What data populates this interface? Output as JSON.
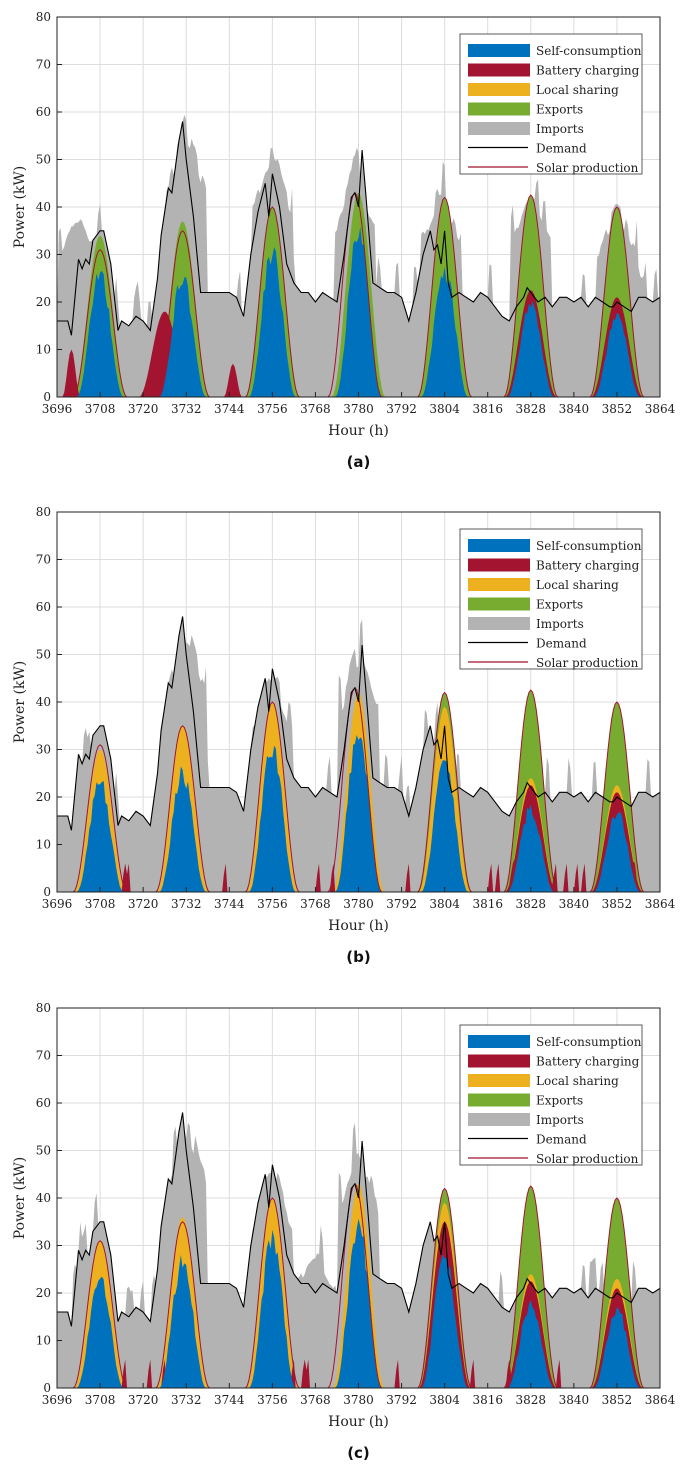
{
  "colors": {
    "self_consumption": "#0072BD",
    "battery_charging": "#A2142F",
    "local_sharing": "#EDB120",
    "exports": "#77AC30",
    "imports": "#B3B3B3",
    "demand": "#000000",
    "solar_production": "#A2142F",
    "grid": "#DDDDDD"
  },
  "chart_data": [
    {
      "type": "area",
      "panel_label": "(a)",
      "xlabel": "Hour (h)",
      "ylabel": "Power (kW)",
      "xlim": [
        3696,
        3864
      ],
      "ylim": [
        0,
        80
      ],
      "xticks": [
        3696,
        3708,
        3720,
        3732,
        3744,
        3756,
        3768,
        3780,
        3792,
        3804,
        3816,
        3828,
        3840,
        3852,
        3864
      ],
      "yticks": [
        0,
        10,
        20,
        30,
        40,
        50,
        60,
        70,
        80
      ],
      "grid": true,
      "legend": "top-right",
      "legend_entries": [
        "Self-consumption",
        "Battery charging",
        "Local sharing",
        "Exports",
        "Imports",
        "Demand",
        "Solar production"
      ],
      "series": [
        {
          "name": "Solar production",
          "peaks": [
            {
              "x": 3708,
              "y": 31
            },
            {
              "x": 3731,
              "y": 35
            },
            {
              "x": 3756,
              "y": 40
            },
            {
              "x": 3779,
              "y": 43
            },
            {
              "x": 3804,
              "y": 42
            },
            {
              "x": 3828,
              "y": 42.5
            },
            {
              "x": 3852,
              "y": 40
            }
          ]
        },
        {
          "name": "Demand",
          "x": [
            3696,
            3699,
            3700,
            3702,
            3703,
            3704,
            3705,
            3706,
            3708,
            3709,
            3711,
            3713,
            3714,
            3716,
            3718,
            3720,
            3722,
            3724,
            3725,
            3727,
            3728,
            3730,
            3731,
            3732,
            3733,
            3734,
            3736,
            3738,
            3741,
            3744,
            3746,
            3748,
            3750,
            3752,
            3754,
            3755,
            3756,
            3758,
            3760,
            3762,
            3764,
            3766,
            3768,
            3770,
            3772,
            3774,
            3776,
            3778,
            3779,
            3780,
            3781,
            3782,
            3784,
            3786,
            3788,
            3790,
            3792,
            3794,
            3796,
            3798,
            3800,
            3801,
            3802,
            3803,
            3804,
            3805,
            3806,
            3808,
            3810,
            3812,
            3814,
            3816,
            3818,
            3820,
            3822,
            3824,
            3826,
            3827,
            3828,
            3830,
            3832,
            3834,
            3836,
            3838,
            3840,
            3842,
            3844,
            3846,
            3848,
            3850,
            3851,
            3852,
            3854,
            3856,
            3858,
            3860,
            3862,
            3864
          ],
          "values": [
            16,
            16,
            13,
            29,
            27,
            29,
            28,
            33,
            35,
            35,
            28,
            14,
            16,
            15,
            17,
            16,
            14,
            25,
            34,
            44,
            43,
            54,
            58,
            50,
            44,
            38,
            22,
            22,
            22,
            22,
            21,
            17,
            30,
            39,
            45,
            38,
            47,
            40,
            28,
            24,
            22,
            22,
            20,
            22,
            21,
            20,
            30,
            42,
            43,
            40,
            52,
            43,
            24,
            23,
            22,
            22,
            21,
            16,
            22,
            30,
            35,
            31,
            32,
            28,
            35,
            24,
            21,
            22,
            21,
            20,
            22,
            21,
            19,
            17,
            16,
            19,
            21,
            23,
            22,
            20,
            21,
            19,
            21,
            21,
            20,
            21,
            19,
            21,
            20,
            19,
            19,
            20,
            19,
            18,
            21,
            21,
            20,
            21
          ]
        },
        {
          "name": "Self-consumption",
          "peaks": [
            {
              "x": 3708,
              "y": 28
            },
            {
              "x": 3731,
              "y": 27
            },
            {
              "x": 3756,
              "y": 33
            },
            {
              "x": 3780,
              "y": 37
            },
            {
              "x": 3804,
              "y": 29
            },
            {
              "x": 3828,
              "y": 21
            },
            {
              "x": 3852,
              "y": 18
            }
          ]
        },
        {
          "name": "Battery charging",
          "peaks": [
            {
              "x": 3700,
              "y": 10
            },
            {
              "x": 3726,
              "y": 18
            },
            {
              "x": 3745,
              "y": 7
            },
            {
              "x": 3828,
              "y": 22.5
            },
            {
              "x": 3852,
              "y": 21
            }
          ]
        },
        {
          "name": "Exports",
          "peaks": [
            {
              "x": 3708,
              "y": 34
            },
            {
              "x": 3731,
              "y": 37
            },
            {
              "x": 3756,
              "y": 40
            },
            {
              "x": 3780,
              "y": 43
            },
            {
              "x": 3804,
              "y": 42
            },
            {
              "x": 3828,
              "y": 42.5
            },
            {
              "x": 3852,
              "y": 40
            }
          ]
        },
        {
          "name": "Imports",
          "peaks": [
            {
              "x": 3702,
              "y": 39
            },
            {
              "x": 3732,
              "y": 58
            },
            {
              "x": 3756,
              "y": 54
            },
            {
              "x": 3779,
              "y": 49
            },
            {
              "x": 3803,
              "y": 45
            },
            {
              "x": 3828,
              "y": 43.5
            },
            {
              "x": 3852,
              "y": 41
            }
          ]
        }
      ]
    },
    {
      "type": "area",
      "panel_label": "(b)",
      "xlabel": "Hour (h)",
      "ylabel": "Power (kW)",
      "xlim": [
        3696,
        3864
      ],
      "ylim": [
        0,
        80
      ],
      "xticks": [
        3696,
        3708,
        3720,
        3732,
        3744,
        3756,
        3768,
        3780,
        3792,
        3804,
        3816,
        3828,
        3840,
        3852,
        3864
      ],
      "yticks": [
        0,
        10,
        20,
        30,
        40,
        50,
        60,
        70,
        80
      ],
      "grid": true,
      "legend": "top-right",
      "legend_entries": [
        "Self-consumption",
        "Battery charging",
        "Local sharing",
        "Exports",
        "Imports",
        "Demand",
        "Solar production"
      ],
      "series": [
        {
          "name": "Solar production",
          "peaks": [
            {
              "x": 3708,
              "y": 31
            },
            {
              "x": 3731,
              "y": 35
            },
            {
              "x": 3756,
              "y": 40
            },
            {
              "x": 3779,
              "y": 43
            },
            {
              "x": 3804,
              "y": 42
            },
            {
              "x": 3828,
              "y": 42.5
            },
            {
              "x": 3852,
              "y": 40
            }
          ]
        },
        {
          "name": "Demand",
          "same_as": "(a)"
        },
        {
          "name": "Self-consumption",
          "peaks": [
            {
              "x": 3708,
              "y": 25
            },
            {
              "x": 3731,
              "y": 27
            },
            {
              "x": 3756,
              "y": 33
            },
            {
              "x": 3780,
              "y": 37
            },
            {
              "x": 3804,
              "y": 30
            },
            {
              "x": 3828,
              "y": 19
            },
            {
              "x": 3852,
              "y": 18
            }
          ]
        },
        {
          "name": "Local sharing",
          "peaks": [
            {
              "x": 3708,
              "y": 30
            },
            {
              "x": 3731,
              "y": 35
            },
            {
              "x": 3756,
              "y": 40
            },
            {
              "x": 3780,
              "y": 42
            },
            {
              "x": 3804,
              "y": 39
            },
            {
              "x": 3828,
              "y": 24
            },
            {
              "x": 3852,
              "y": 22.5
            }
          ]
        },
        {
          "name": "Battery charging",
          "peaks": [
            {
              "x": 3828,
              "y": 22.5
            },
            {
              "x": 3852,
              "y": 21
            }
          ]
        },
        {
          "name": "Exports",
          "peaks": [
            {
              "x": 3804,
              "y": 42
            },
            {
              "x": 3828,
              "y": 42.5
            },
            {
              "x": 3852,
              "y": 40
            }
          ]
        },
        {
          "name": "Imports",
          "peaks": [
            {
              "x": 3732,
              "y": 58
            },
            {
              "x": 3756,
              "y": 47
            },
            {
              "x": 3780,
              "y": 52
            }
          ]
        }
      ]
    },
    {
      "type": "area",
      "panel_label": "(c)",
      "xlabel": "Hour (h)",
      "ylabel": "Power (kW)",
      "xlim": [
        3696,
        3864
      ],
      "ylim": [
        0,
        80
      ],
      "xticks": [
        3696,
        3708,
        3720,
        3732,
        3744,
        3756,
        3768,
        3780,
        3792,
        3804,
        3816,
        3828,
        3840,
        3852,
        3864
      ],
      "yticks": [
        0,
        10,
        20,
        30,
        40,
        50,
        60,
        70,
        80
      ],
      "grid": true,
      "legend": "top-right",
      "legend_entries": [
        "Self-consumption",
        "Battery charging",
        "Local sharing",
        "Exports",
        "Imports",
        "Demand",
        "Solar production"
      ],
      "series": [
        {
          "name": "Solar production",
          "peaks": [
            {
              "x": 3708,
              "y": 31
            },
            {
              "x": 3731,
              "y": 35
            },
            {
              "x": 3756,
              "y": 40
            },
            {
              "x": 3779,
              "y": 43
            },
            {
              "x": 3804,
              "y": 42
            },
            {
              "x": 3828,
              "y": 42.5
            },
            {
              "x": 3852,
              "y": 40
            }
          ]
        },
        {
          "name": "Demand",
          "same_as": "(a)"
        },
        {
          "name": "Self-consumption",
          "peaks": [
            {
              "x": 3708,
              "y": 25
            },
            {
              "x": 3731,
              "y": 29
            },
            {
              "x": 3756,
              "y": 34
            },
            {
              "x": 3780,
              "y": 37
            },
            {
              "x": 3804,
              "y": 30
            },
            {
              "x": 3828,
              "y": 19
            },
            {
              "x": 3852,
              "y": 18
            }
          ]
        },
        {
          "name": "Local sharing",
          "peaks": [
            {
              "x": 3708,
              "y": 31
            },
            {
              "x": 3731,
              "y": 36
            },
            {
              "x": 3756,
              "y": 40
            },
            {
              "x": 3780,
              "y": 43
            },
            {
              "x": 3804,
              "y": 39
            },
            {
              "x": 3828,
              "y": 24
            },
            {
              "x": 3852,
              "y": 23
            }
          ]
        },
        {
          "name": "Battery charging",
          "peaks": [
            {
              "x": 3804,
              "y": 35
            },
            {
              "x": 3828,
              "y": 22.5
            },
            {
              "x": 3852,
              "y": 21
            }
          ]
        },
        {
          "name": "Exports",
          "peaks": [
            {
              "x": 3804,
              "y": 42
            },
            {
              "x": 3828,
              "y": 42.5
            },
            {
              "x": 3852,
              "y": 40
            }
          ]
        },
        {
          "name": "Imports",
          "peaks": [
            {
              "x": 3732,
              "y": 58
            },
            {
              "x": 3756,
              "y": 47
            },
            {
              "x": 3768,
              "y": 29
            },
            {
              "x": 3780,
              "y": 52
            }
          ]
        }
      ]
    }
  ]
}
